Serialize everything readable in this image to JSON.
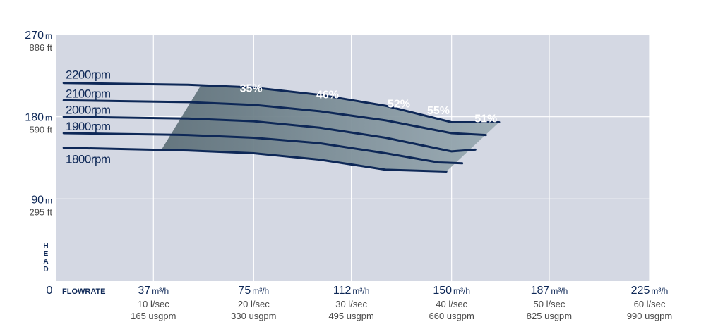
{
  "chart_data": {
    "type": "line",
    "axis_labels": {
      "head": "HEAD",
      "flowrate": "FLOWRATE",
      "origin": "0"
    },
    "xlim": [
      0,
      225
    ],
    "ylim": [
      0,
      270
    ],
    "grid": true,
    "y_ticks": [
      {
        "value": 270,
        "main": "270",
        "unit": "m",
        "secondary": "886 ft"
      },
      {
        "value": 180,
        "main": "180",
        "unit": "m",
        "secondary": "590 ft"
      },
      {
        "value": 90,
        "main": "90",
        "unit": "m",
        "secondary": "295 ft"
      }
    ],
    "x_ticks": [
      {
        "value": 37,
        "main": "37",
        "unit": "m³/h",
        "sub1": "10 l/sec",
        "sub2": "165 usgpm"
      },
      {
        "value": 75,
        "main": "75",
        "unit": "m³/h",
        "sub1": "20 l/sec",
        "sub2": "330 usgpm"
      },
      {
        "value": 112,
        "main": "112",
        "unit": "m³/h",
        "sub1": "30 l/sec",
        "sub2": "495 usgpm"
      },
      {
        "value": 150,
        "main": "150",
        "unit": "m³/h",
        "sub1": "40 l/sec",
        "sub2": "660 usgpm"
      },
      {
        "value": 187,
        "main": "187",
        "unit": "m³/h",
        "sub1": "50 l/sec",
        "sub2": "825 usgpm"
      },
      {
        "value": 225,
        "main": "225",
        "unit": "m³/h",
        "sub1": "60 l/sec",
        "sub2": "990 usgpm"
      }
    ],
    "series": [
      {
        "name": "2200rpm",
        "x": [
          3,
          50,
          75,
          100,
          125,
          150,
          168
        ],
        "y": [
          217,
          215,
          212,
          204,
          192,
          174,
          174
        ]
      },
      {
        "name": "2100rpm",
        "x": [
          3,
          50,
          75,
          100,
          125,
          150,
          163
        ],
        "y": [
          198,
          196,
          193,
          186,
          176,
          162,
          160
        ]
      },
      {
        "name": "2000rpm",
        "x": [
          3,
          50,
          75,
          100,
          125,
          150,
          159
        ],
        "y": [
          180,
          178,
          175,
          168,
          157,
          142,
          144
        ]
      },
      {
        "name": "1900rpm",
        "x": [
          3,
          50,
          75,
          100,
          125,
          145,
          154
        ],
        "y": [
          162,
          160,
          157,
          151,
          140,
          130,
          129
        ]
      },
      {
        "name": "1800rpm",
        "x": [
          3,
          50,
          75,
          100,
          125,
          148
        ],
        "y": [
          146,
          143,
          140,
          133,
          122,
          120
        ]
      }
    ],
    "efficiency_labels": [
      {
        "label": "35%",
        "x": 74,
        "y": 207
      },
      {
        "label": "46%",
        "x": 103,
        "y": 200
      },
      {
        "label": "52%",
        "x": 130,
        "y": 190
      },
      {
        "label": "55%",
        "x": 145,
        "y": 183
      },
      {
        "label": "51%",
        "x": 163,
        "y": 174
      }
    ],
    "colors": {
      "plot_background": "#d4d8e3",
      "grid": "#ffffff",
      "curve": "#0e2857",
      "text": "#0e2857",
      "secondary_text": "#4a4a4a",
      "efficiency_band": [
        "#5f717a",
        "#6c7e87",
        "#7c8e97",
        "#8c9da6",
        "#9aabb3"
      ],
      "efficiency_label": "#ffffff"
    }
  }
}
